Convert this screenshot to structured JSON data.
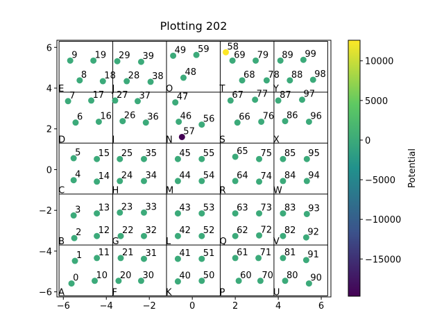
{
  "chart_data": {
    "type": "scatter",
    "title": "Plotting 202",
    "xlim": [
      -6.3,
      6.45
    ],
    "ylim": [
      -6.25,
      6.35
    ],
    "xticks": [
      {
        "value": -6,
        "label": "−6"
      },
      {
        "value": -4,
        "label": "−4"
      },
      {
        "value": -2,
        "label": "−2"
      },
      0,
      2,
      4,
      6
    ],
    "yticks": [
      {
        "value": -6,
        "label": "−6"
      },
      {
        "value": -4,
        "label": "−4"
      },
      {
        "value": -2,
        "label": "−2"
      },
      0,
      2,
      4,
      6
    ],
    "regions": {
      "x_edges": [
        -6.2,
        -3.7,
        -1.2,
        1.3,
        3.8,
        6.3
      ],
      "y_edges": [
        -6.2,
        -3.7,
        -1.2,
        1.3,
        3.8,
        6.3
      ],
      "labels": [
        "A",
        "B",
        "C",
        "D",
        "E",
        "F",
        "G",
        "H",
        "I",
        "J",
        "K",
        "L",
        "M",
        "N",
        "O",
        "P",
        "Q",
        "R",
        "S",
        "T",
        "U",
        "V",
        "W",
        "X",
        "Y"
      ]
    },
    "labels": [
      "0",
      "1",
      "2",
      "3",
      "4",
      "5",
      "6",
      "7",
      "8",
      "9",
      "10",
      "11",
      "12",
      "13",
      "14",
      "15",
      "16",
      "17",
      "18",
      "19",
      "20",
      "21",
      "22",
      "23",
      "24",
      "25",
      "26",
      "27",
      "28",
      "29",
      "30",
      "31",
      "32",
      "33",
      "34",
      "35",
      "36",
      "37",
      "38",
      "39",
      "40",
      "41",
      "42",
      "43",
      "44",
      "45",
      "46",
      "47",
      "48",
      "49",
      "50",
      "51",
      "52",
      "53",
      "54",
      "55",
      "56",
      "57",
      "58",
      "59",
      "60",
      "61",
      "62",
      "63",
      "64",
      "65",
      "66",
      "67",
      "68",
      "69",
      "70",
      "71",
      "72",
      "73",
      "74",
      "75",
      "76",
      "77",
      "78",
      "79",
      "80",
      "81",
      "82",
      "83",
      "84",
      "85",
      "86",
      "87",
      "88",
      "89",
      "90",
      "91",
      "92",
      "93",
      "94",
      "95",
      "96",
      "97",
      "98",
      "99"
    ],
    "x": [
      -5.62,
      -5.46,
      -5.49,
      -5.52,
      -5.52,
      -5.52,
      -5.43,
      -5.78,
      -5.24,
      -5.68,
      -4.54,
      -4.44,
      -4.44,
      -4.44,
      -4.44,
      -4.44,
      -4.35,
      -4.7,
      -4.16,
      -4.6,
      -3.43,
      -3.33,
      -3.33,
      -3.37,
      -3.37,
      -3.37,
      -3.24,
      -3.59,
      -3.05,
      -3.49,
      -2.38,
      -2.25,
      -2.25,
      -2.25,
      -2.25,
      -2.25,
      -2.16,
      -2.54,
      -1.94,
      -2.38,
      -0.67,
      -0.67,
      -0.67,
      -0.67,
      -0.67,
      -0.67,
      -0.63,
      -0.79,
      -0.41,
      -0.89,
      0.44,
      0.44,
      0.44,
      0.44,
      0.44,
      0.44,
      0.44,
      -0.48,
      1.56,
      0.19,
      2.16,
      2.0,
      2.0,
      2.0,
      2.0,
      2.0,
      2.1,
      1.78,
      2.32,
      1.87,
      3.17,
      3.08,
      3.11,
      3.11,
      3.11,
      3.11,
      3.21,
      2.92,
      3.46,
      2.95,
      4.32,
      4.22,
      4.22,
      4.22,
      4.22,
      4.22,
      4.32,
      4.0,
      4.54,
      4.1,
      5.43,
      5.3,
      5.3,
      5.33,
      5.33,
      5.33,
      5.43,
      5.11,
      5.62,
      5.17
    ],
    "y": [
      -5.59,
      -4.48,
      -3.36,
      -2.25,
      -0.52,
      0.56,
      2.31,
      3.36,
      4.38,
      5.35,
      -5.46,
      -4.34,
      -3.26,
      -2.15,
      -0.59,
      0.52,
      2.35,
      3.39,
      4.34,
      5.35,
      -5.46,
      -4.34,
      -3.26,
      -2.11,
      -0.56,
      0.52,
      2.38,
      3.39,
      4.34,
      5.32,
      -5.46,
      -4.38,
      -3.26,
      -2.11,
      -0.56,
      0.52,
      2.31,
      3.36,
      4.31,
      5.29,
      -5.49,
      -4.38,
      -3.26,
      -2.15,
      -0.56,
      0.52,
      2.35,
      3.3,
      4.51,
      5.59,
      -5.46,
      -4.38,
      -3.26,
      -2.15,
      -0.56,
      0.52,
      2.21,
      1.6,
      5.76,
      5.63,
      -5.46,
      -4.34,
      -3.26,
      -2.15,
      -0.56,
      0.63,
      2.31,
      3.39,
      4.38,
      5.35,
      -5.46,
      -4.34,
      -3.23,
      -2.15,
      -0.59,
      0.52,
      2.35,
      3.43,
      4.38,
      5.35,
      -5.46,
      -4.34,
      -3.26,
      -2.15,
      -0.56,
      0.52,
      2.38,
      3.39,
      4.38,
      5.35,
      -5.59,
      -4.44,
      -3.33,
      -2.18,
      -0.56,
      0.52,
      2.35,
      3.43,
      4.41,
      5.39
    ],
    "potential": [
      0,
      0,
      0,
      0,
      0,
      0,
      0,
      0,
      0,
      0,
      0,
      0,
      0,
      0,
      0,
      0,
      0,
      0,
      0,
      0,
      0,
      0,
      0,
      0,
      0,
      0,
      0,
      0,
      0,
      0,
      0,
      0,
      0,
      0,
      0,
      0,
      0,
      0,
      0,
      0,
      0,
      0,
      0,
      0,
      0,
      0,
      0,
      0,
      0,
      0,
      0,
      0,
      0,
      0,
      0,
      0,
      0,
      -19700,
      12600,
      0,
      0,
      0,
      0,
      0,
      0,
      0,
      0,
      0,
      0,
      0,
      0,
      0,
      0,
      0,
      0,
      0,
      0,
      0,
      0,
      0,
      0,
      0,
      0,
      0,
      0,
      0,
      0,
      0,
      0,
      0,
      0,
      0,
      0,
      0,
      0,
      0,
      0,
      0,
      0,
      0
    ],
    "colorbar": {
      "label": "Potential",
      "colormap": "viridis",
      "lim": [
        -19700,
        12600
      ],
      "ticks": [
        {
          "value": -15000,
          "label": "−15000"
        },
        {
          "value": -10000,
          "label": "−10000"
        },
        {
          "value": -5000,
          "label": "−5000"
        },
        0,
        5000,
        10000
      ]
    }
  }
}
